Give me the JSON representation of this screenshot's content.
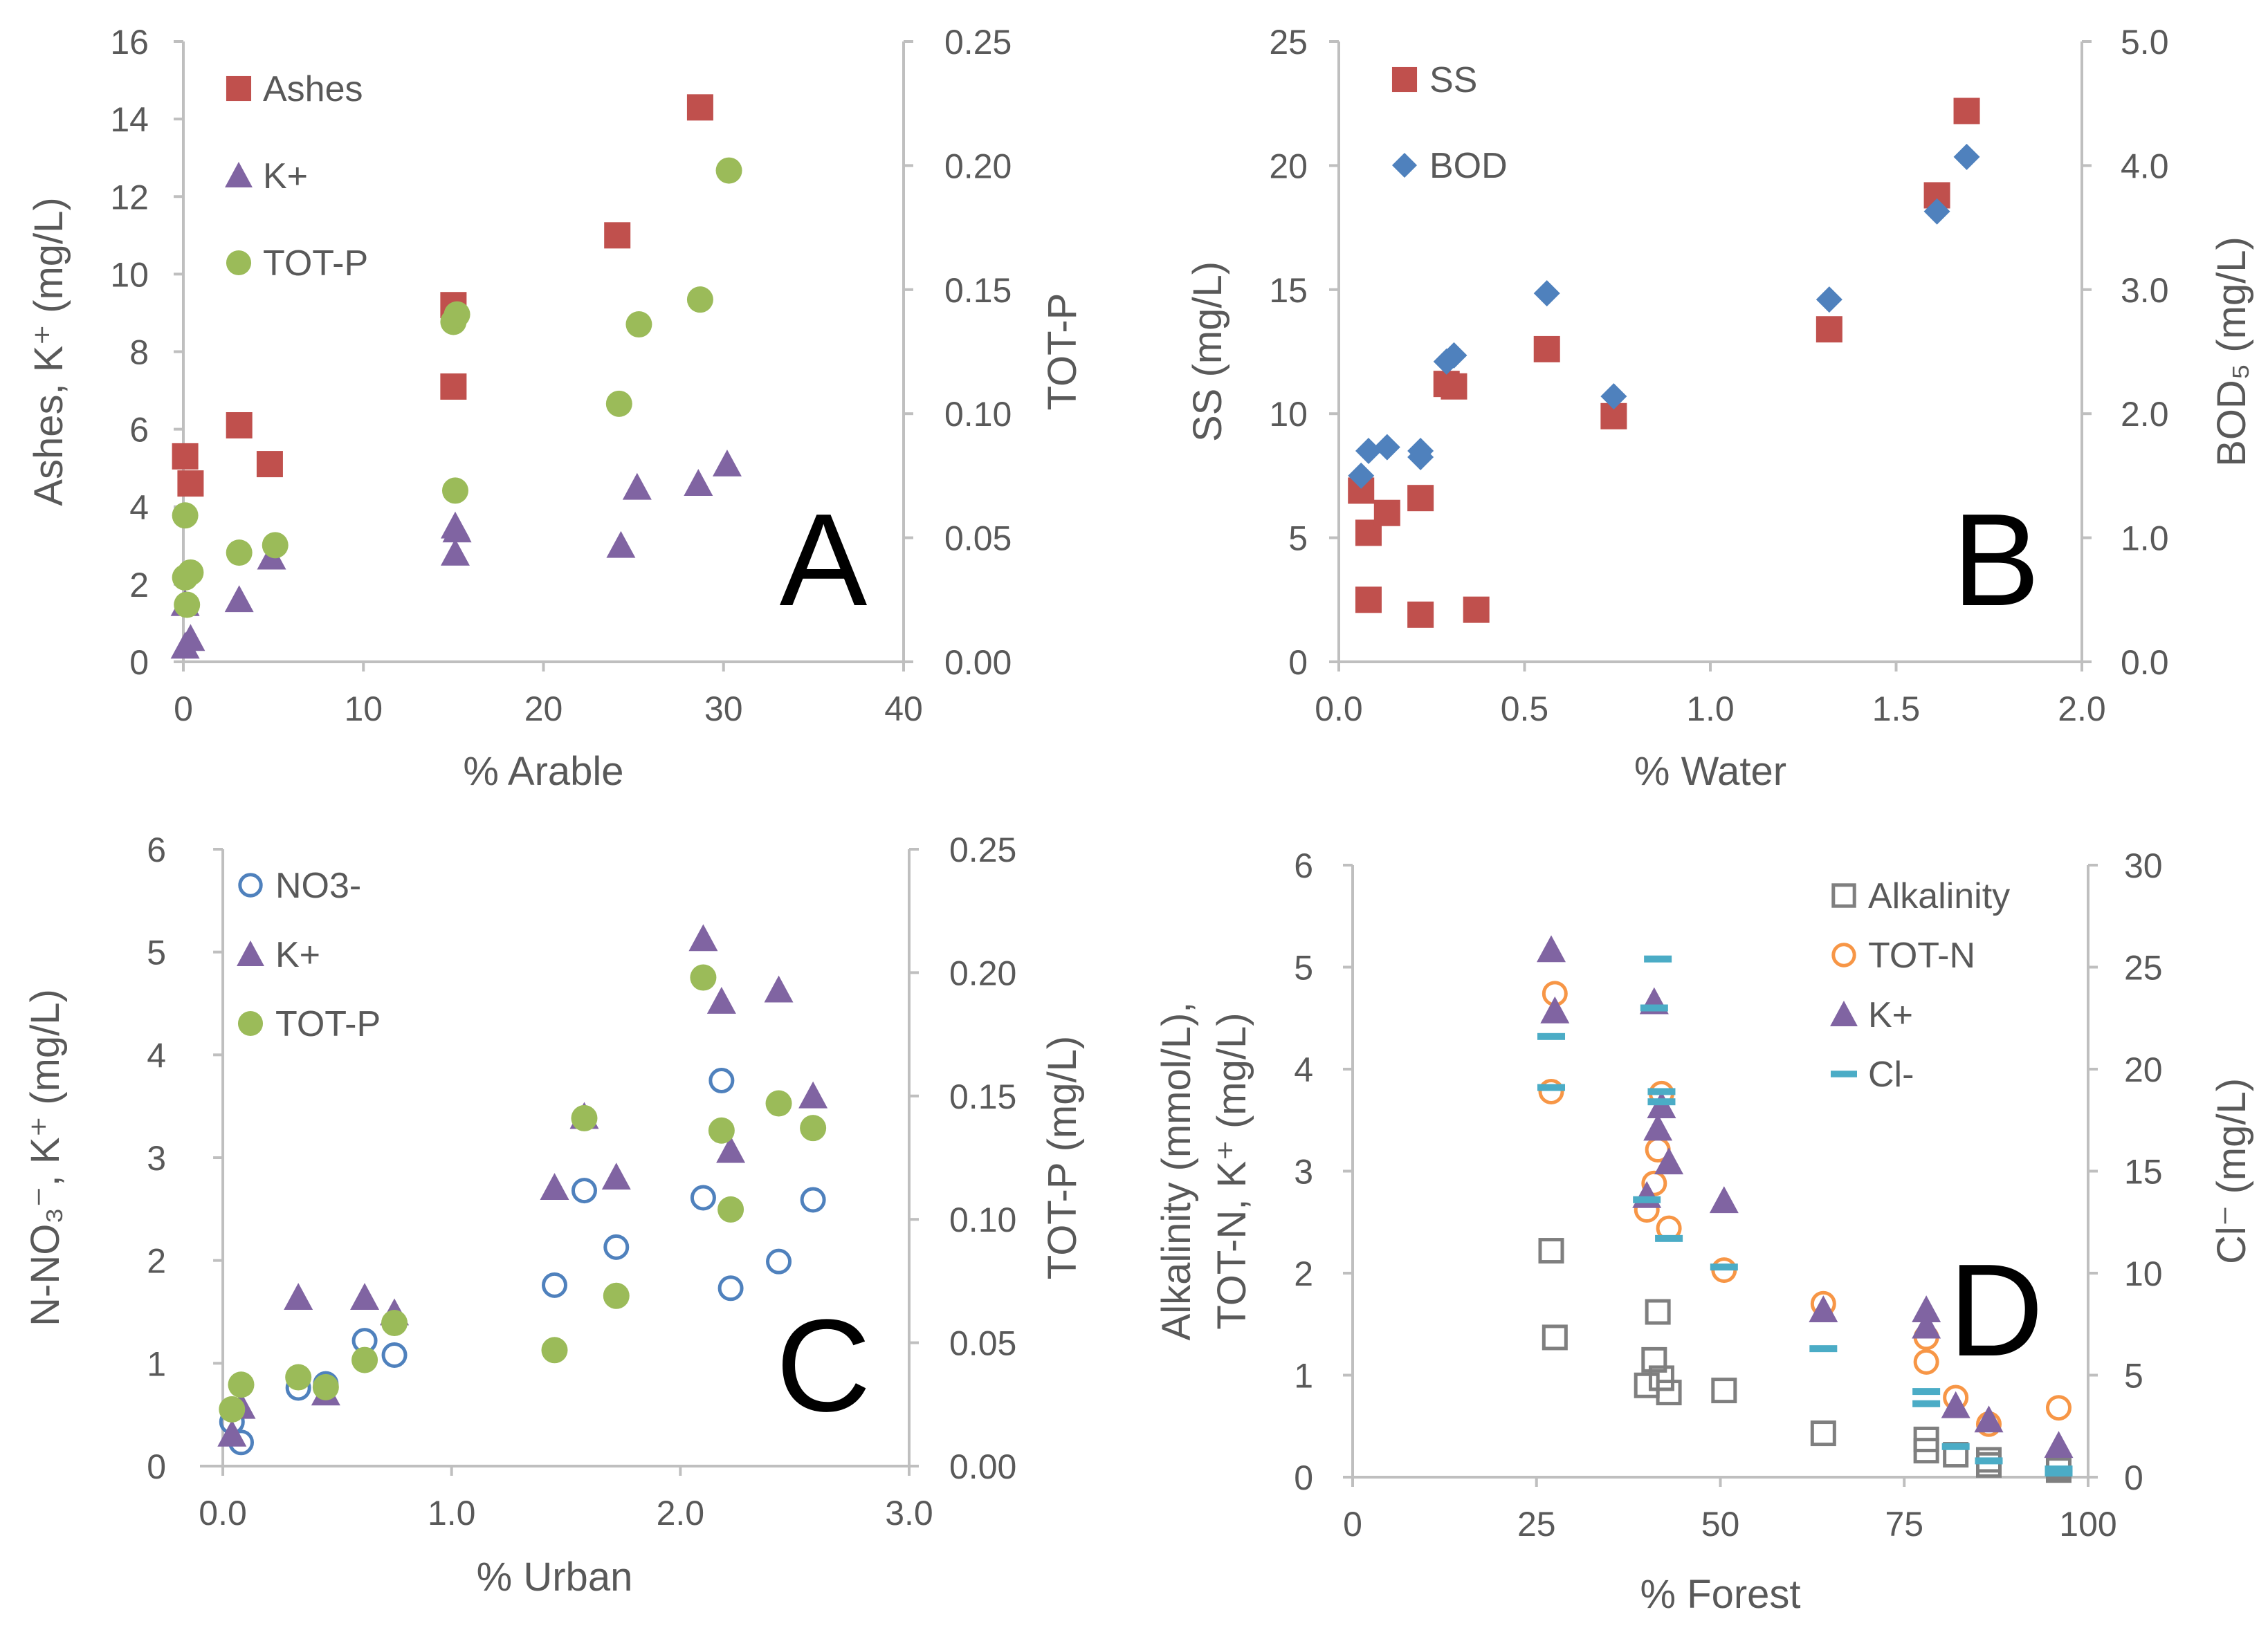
{
  "colors": {
    "ashes": "#C0504D",
    "k": "#8064A2",
    "totp": "#9BBB59",
    "ss": "#C0504D",
    "bod": "#4F81BD",
    "no3": "#4F81BD",
    "alkalinity": "#7F7F7F",
    "totn": "#F79646",
    "cl": "#4BACC6",
    "axis": "#BFBFBF",
    "text": "#595959"
  },
  "chart_data": [
    {
      "type": "scatter",
      "panel": "A",
      "xlabel": "% Arable",
      "ylabel": "Ashes, K⁺ (mg/L)",
      "y2label": "TOT-P",
      "xlim": [
        0,
        40
      ],
      "ylim": [
        0,
        16
      ],
      "y2lim": [
        0,
        0.25
      ],
      "x_ticks": [
        "0",
        "10",
        "20",
        "30",
        "40"
      ],
      "y_ticks": [
        "0",
        "2",
        "4",
        "6",
        "8",
        "10",
        "12",
        "14",
        "16"
      ],
      "y2_ticks": [
        "0.00",
        "0.05",
        "0.10",
        "0.15",
        "0.20",
        "0.25"
      ],
      "legend_position": "top-left",
      "series": [
        {
          "name": "Ashes",
          "marker": "square",
          "axis": "y",
          "points": [
            [
              0.1,
              5.3
            ],
            [
              0.4,
              4.6
            ],
            [
              3.1,
              6.1
            ],
            [
              4.8,
              5.1
            ],
            [
              15.0,
              9.2
            ],
            [
              15.0,
              7.1
            ],
            [
              24.1,
              11.0
            ],
            [
              28.7,
              14.3
            ]
          ]
        },
        {
          "name": "K+",
          "marker": "triangle",
          "axis": "y",
          "points": [
            [
              0.1,
              1.5
            ],
            [
              0.1,
              0.4
            ],
            [
              0.4,
              0.6
            ],
            [
              3.1,
              1.6
            ],
            [
              4.9,
              2.7
            ],
            [
              15.1,
              2.8
            ],
            [
              15.1,
              3.5
            ],
            [
              15.2,
              3.4
            ],
            [
              24.3,
              3.0
            ],
            [
              25.2,
              4.5
            ],
            [
              28.6,
              4.6
            ],
            [
              30.2,
              5.1
            ]
          ]
        },
        {
          "name": "TOT-P",
          "marker": "circle",
          "axis": "y2",
          "points": [
            [
              0.1,
              0.059
            ],
            [
              0.1,
              0.034
            ],
            [
              0.4,
              0.036
            ],
            [
              0.2,
              0.023
            ],
            [
              3.1,
              0.044
            ],
            [
              5.1,
              0.047
            ],
            [
              15.1,
              0.069
            ],
            [
              15.0,
              0.137
            ],
            [
              15.2,
              0.14
            ],
            [
              24.2,
              0.104
            ],
            [
              25.3,
              0.136
            ],
            [
              28.7,
              0.146
            ],
            [
              30.3,
              0.198
            ]
          ]
        }
      ]
    },
    {
      "type": "scatter",
      "panel": "B",
      "xlabel": "% Water",
      "ylabel": "SS (mg/L)",
      "y2label": "BOD₅ (mg/L)",
      "xlim": [
        0,
        2.0
      ],
      "ylim": [
        0,
        25
      ],
      "y2lim": [
        0,
        5.0
      ],
      "x_ticks": [
        "0.0",
        "0.5",
        "1.0",
        "1.5",
        "2.0"
      ],
      "y_ticks": [
        "0",
        "5",
        "10",
        "15",
        "20",
        "25"
      ],
      "y2_ticks": [
        "0.0",
        "1.0",
        "2.0",
        "3.0",
        "4.0",
        "5.0"
      ],
      "legend_position": "top-left",
      "series": [
        {
          "name": "SS",
          "marker": "square",
          "axis": "y",
          "points": [
            [
              0.06,
              6.9
            ],
            [
              0.08,
              5.2
            ],
            [
              0.08,
              2.5
            ],
            [
              0.13,
              6.0
            ],
            [
              0.22,
              6.6
            ],
            [
              0.22,
              1.9
            ],
            [
              0.29,
              11.2
            ],
            [
              0.31,
              11.1
            ],
            [
              0.37,
              2.1
            ],
            [
              0.56,
              12.6
            ],
            [
              0.74,
              9.9
            ],
            [
              1.32,
              13.4
            ],
            [
              1.61,
              18.8
            ],
            [
              1.69,
              22.2
            ]
          ]
        },
        {
          "name": "BOD",
          "marker": "diamond",
          "axis": "y2",
          "points": [
            [
              0.06,
              1.5
            ],
            [
              0.08,
              1.7
            ],
            [
              0.13,
              1.73
            ],
            [
              0.22,
              1.7
            ],
            [
              0.22,
              1.65
            ],
            [
              0.29,
              2.42
            ],
            [
              0.31,
              2.47
            ],
            [
              0.56,
              2.97
            ],
            [
              0.74,
              2.14
            ],
            [
              1.32,
              2.92
            ],
            [
              1.61,
              3.63
            ],
            [
              1.69,
              4.07
            ]
          ]
        }
      ]
    },
    {
      "type": "scatter",
      "panel": "C",
      "xlabel": "% Urban",
      "ylabel": "N-NO₃⁻, K⁺ (mg/L)",
      "y2label": "TOT-P (mg/L)",
      "xlim": [
        -0.1,
        3.0
      ],
      "ylim": [
        0,
        6
      ],
      "y2lim": [
        0,
        0.25
      ],
      "x_ticks": [
        "0.0",
        "1.0",
        "2.0",
        "3.0"
      ],
      "y_ticks": [
        "0",
        "1",
        "2",
        "3",
        "4",
        "5",
        "6"
      ],
      "y2_ticks": [
        "0.00",
        "0.05",
        "0.10",
        "0.15",
        "0.20",
        "0.25"
      ],
      "legend_position": "top-left",
      "series": [
        {
          "name": "NO3-",
          "marker": "circle-open",
          "axis": "y",
          "points": [
            [
              0.04,
              0.43
            ],
            [
              0.08,
              0.23
            ],
            [
              0.33,
              0.76
            ],
            [
              0.45,
              0.8
            ],
            [
              0.62,
              1.22
            ],
            [
              0.75,
              1.08
            ],
            [
              1.45,
              1.76
            ],
            [
              1.58,
              2.68
            ],
            [
              1.72,
              2.13
            ],
            [
              2.1,
              2.61
            ],
            [
              2.18,
              3.75
            ],
            [
              2.22,
              1.73
            ],
            [
              2.43,
              1.99
            ],
            [
              2.58,
              2.59
            ]
          ]
        },
        {
          "name": "K+",
          "marker": "triangle",
          "axis": "y",
          "points": [
            [
              0.04,
              0.31
            ],
            [
              0.08,
              0.58
            ],
            [
              0.33,
              1.64
            ],
            [
              0.45,
              0.71
            ],
            [
              0.62,
              1.64
            ],
            [
              0.75,
              1.49
            ],
            [
              1.45,
              2.71
            ],
            [
              1.58,
              3.4
            ],
            [
              1.72,
              2.81
            ],
            [
              2.1,
              5.13
            ],
            [
              2.18,
              4.52
            ],
            [
              2.22,
              3.07
            ],
            [
              2.43,
              4.63
            ],
            [
              2.58,
              3.6
            ]
          ]
        },
        {
          "name": "TOT-P",
          "marker": "circle",
          "axis": "y2",
          "points": [
            [
              0.04,
              0.023
            ],
            [
              0.08,
              0.033
            ],
            [
              0.33,
              0.036
            ],
            [
              0.45,
              0.032
            ],
            [
              0.62,
              0.043
            ],
            [
              0.75,
              0.058
            ],
            [
              1.45,
              0.047
            ],
            [
              1.58,
              0.141
            ],
            [
              1.72,
              0.069
            ],
            [
              2.1,
              0.198
            ],
            [
              2.18,
              0.136
            ],
            [
              2.22,
              0.104
            ],
            [
              2.43,
              0.147
            ],
            [
              2.58,
              0.137
            ]
          ]
        }
      ]
    },
    {
      "type": "scatter",
      "panel": "D",
      "xlabel": "% Forest",
      "ylabel_line1": "Alkalinity (mmol/L),",
      "ylabel_line2": "TOT-N, K⁺ (mg/L)",
      "y2label": "Cl⁻ (mg/L)",
      "xlim": [
        0,
        100
      ],
      "ylim": [
        0,
        6
      ],
      "y2lim": [
        0,
        30
      ],
      "x_ticks": [
        "0",
        "25",
        "50",
        "75",
        "100"
      ],
      "y_ticks": [
        "0",
        "1",
        "2",
        "3",
        "4",
        "5",
        "6"
      ],
      "y2_ticks": [
        "0",
        "5",
        "10",
        "15",
        "20",
        "25",
        "30"
      ],
      "legend_position": "top-right",
      "series": [
        {
          "name": "Alkalinity",
          "marker": "square-open",
          "axis": "y",
          "points": [
            [
              27,
              2.22
            ],
            [
              27.5,
              1.37
            ],
            [
              40,
              0.9
            ],
            [
              41,
              1.15
            ],
            [
              41.5,
              1.62
            ],
            [
              42,
              0.97
            ],
            [
              43,
              0.83
            ],
            [
              50.5,
              0.85
            ],
            [
              64,
              0.43
            ],
            [
              78,
              0.37
            ],
            [
              78,
              0.26
            ],
            [
              82,
              0.22
            ],
            [
              86.5,
              0.17
            ],
            [
              86.5,
              0.12
            ],
            [
              96,
              0.07
            ],
            [
              96,
              0.1
            ]
          ]
        },
        {
          "name": "TOT-N",
          "marker": "circle-open",
          "axis": "y",
          "points": [
            [
              27,
              3.78
            ],
            [
              27.5,
              4.74
            ],
            [
              40,
              2.62
            ],
            [
              41,
              2.88
            ],
            [
              41.5,
              3.21
            ],
            [
              42,
              3.76
            ],
            [
              43,
              2.44
            ],
            [
              50.5,
              2.03
            ],
            [
              64,
              1.7
            ],
            [
              78,
              1.13
            ],
            [
              78,
              1.37
            ],
            [
              82,
              0.78
            ],
            [
              86.5,
              0.52
            ],
            [
              96,
              0.68
            ]
          ]
        },
        {
          "name": "K+",
          "marker": "triangle",
          "axis": "y",
          "points": [
            [
              27,
              5.17
            ],
            [
              27.5,
              4.57
            ],
            [
              40,
              2.76
            ],
            [
              41,
              4.66
            ],
            [
              41.5,
              3.42
            ],
            [
              42,
              3.64
            ],
            [
              43,
              3.09
            ],
            [
              50.5,
              2.71
            ],
            [
              64,
              1.64
            ],
            [
              78,
              1.64
            ],
            [
              78,
              1.48
            ],
            [
              82,
              0.7
            ],
            [
              86.5,
              0.56
            ],
            [
              96,
              0.31
            ]
          ]
        },
        {
          "name": "Cl-",
          "marker": "dash",
          "axis": "y2",
          "points": [
            [
              27,
              21.6
            ],
            [
              27,
              19.1
            ],
            [
              40,
              13.6
            ],
            [
              41,
              23.0
            ],
            [
              41.5,
              25.4
            ],
            [
              42,
              18.9
            ],
            [
              42,
              18.4
            ],
            [
              43,
              11.7
            ],
            [
              50.5,
              10.3
            ],
            [
              64,
              6.3
            ],
            [
              78,
              4.2
            ],
            [
              78,
              3.6
            ],
            [
              82,
              1.5
            ],
            [
              86.5,
              0.8
            ],
            [
              96,
              0.4
            ],
            [
              96,
              0.2
            ]
          ]
        }
      ]
    }
  ]
}
